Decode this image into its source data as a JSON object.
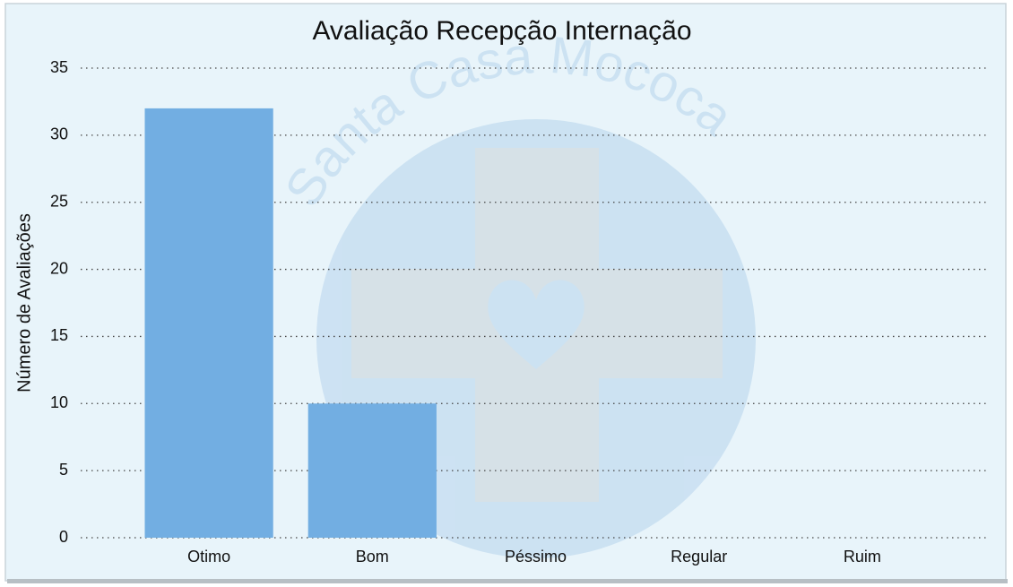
{
  "chart_data": {
    "type": "bar",
    "title": "Avaliação Recepção Internação",
    "watermark": "Santa Casa Mococa",
    "y_label": "Número de Avaliações",
    "categories": [
      "Otimo",
      "Bom",
      "Péssimo",
      "Regular",
      "Ruim"
    ],
    "values": [
      32,
      10,
      0,
      0,
      0
    ],
    "color": "#72aee2",
    "ylim": [
      0,
      35
    ],
    "yticks": [
      0,
      5,
      10,
      15,
      20,
      25,
      30,
      35
    ],
    "grid": true
  }
}
